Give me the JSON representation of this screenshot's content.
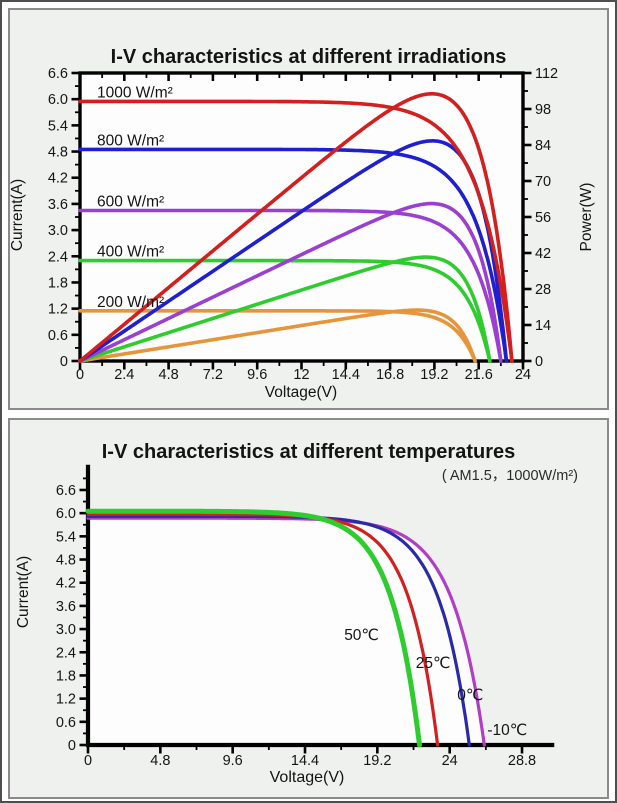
{
  "page": {
    "background": "#ffffff",
    "outer_border": "#4e4e4e",
    "panel_background": "#eff1ee",
    "panel_border": "#8a8a8a",
    "plot_background": "#fdfdfd",
    "axis_color": "#000000",
    "text_color": "#141414"
  },
  "chart_data": [
    {
      "type": "line",
      "title": "I-V characteristics at different irradiations",
      "xlabel": "Voltage(V)",
      "ylabel": "Current(A)",
      "y2label": "Power(W)",
      "xlim": [
        0,
        24
      ],
      "ylim": [
        0,
        6.6
      ],
      "y2lim": [
        0,
        112
      ],
      "grid": false,
      "frame": "box",
      "legend": "inline-labels",
      "x_major": [
        0,
        2.4,
        4.8,
        7.2,
        9.6,
        12,
        14.4,
        16.8,
        19.2,
        21.6,
        24
      ],
      "x_labels": [
        "0",
        "2.4",
        "4.8",
        "7.2",
        "9.6",
        "12",
        "14.4",
        "16.8",
        "19.2",
        "21.6",
        "24"
      ],
      "x_minor": [
        1.2,
        3.6,
        6,
        8.4,
        10.8,
        13.2,
        15.6,
        18,
        20.4,
        22.8
      ],
      "y_major": [
        0,
        0.6,
        1.2,
        1.8,
        2.4,
        3,
        3.6,
        4.2,
        4.8,
        5.4,
        6,
        6.6
      ],
      "y_labels": [
        "0",
        "0.6",
        "1.2",
        "1.8",
        "2.4",
        "3.0",
        "3.6",
        "4.2",
        "4.8",
        "5.4",
        "6.0",
        "6.6"
      ],
      "y_minor": [
        0.3,
        0.9,
        1.5,
        2.1,
        2.7,
        3.3,
        3.9,
        4.5,
        5.1,
        5.7,
        6.3
      ],
      "y2_major": [
        0,
        14,
        28,
        42,
        56,
        70,
        84,
        98,
        112
      ],
      "y2_labels": [
        "0",
        "14",
        "28",
        "42",
        "56",
        "70",
        "84",
        "98",
        "112"
      ],
      "y2_minor": [
        7,
        21,
        35,
        49,
        63,
        77,
        91,
        105
      ],
      "power_curves": true,
      "series_label_color": "#141414",
      "series": [
        {
          "name": "200 W/m²",
          "color": "#e6953b",
          "isc_A": 1.15,
          "voc_V": 21.4,
          "pmax_W": 20,
          "knee": 1.1,
          "width": 3.6,
          "label_x": 0.92,
          "label_y": 1.24
        },
        {
          "name": "400 W/m²",
          "color": "#2ecc2e",
          "isc_A": 2.3,
          "voc_V": 22.2,
          "pmax_W": 41,
          "knee": 1.25,
          "width": 3.6,
          "label_x": 0.92,
          "label_y": 2.39
        },
        {
          "name": "600 W/m²",
          "color": "#9b3fd1",
          "isc_A": 3.45,
          "voc_V": 22.8,
          "pmax_W": 61,
          "knee": 1.4,
          "width": 3.6,
          "label_x": 0.92,
          "label_y": 3.54
        },
        {
          "name": "800 W/m²",
          "color": "#1f1fce",
          "isc_A": 4.85,
          "voc_V": 23.1,
          "pmax_W": 86,
          "knee": 1.55,
          "width": 3.6,
          "label_x": 0.92,
          "label_y": 4.94
        },
        {
          "name": "1000 W/m²",
          "color": "#d41f1f",
          "isc_A": 5.95,
          "voc_V": 23.4,
          "pmax_W": 104,
          "knee": 1.75,
          "width": 3.6,
          "label_x": 0.92,
          "label_y": 6.04
        }
      ]
    },
    {
      "type": "line",
      "title": "I-V characteristics at different temperatures",
      "subtitle": "( AM1.5，1000W/m²)",
      "xlabel": "Voltage(V)",
      "ylabel": "Current(A)",
      "xlim": [
        0,
        30.8
      ],
      "ylim": [
        0,
        7.2
      ],
      "grid": false,
      "frame": "L",
      "legend": "inline-labels",
      "x_major": [
        0,
        4.8,
        9.6,
        14.4,
        19.2,
        24,
        28.8
      ],
      "x_labels": [
        "0",
        "4.8",
        "9.6",
        "14.4",
        "19.2",
        "24",
        "28.8"
      ],
      "x_minor": [
        2.4,
        7.2,
        12,
        16.8,
        21.6,
        26.4
      ],
      "y_major": [
        0,
        0.6,
        1.2,
        1.8,
        2.4,
        3,
        3.6,
        4.2,
        4.8,
        5.4,
        6,
        6.6
      ],
      "y_labels": [
        "0",
        "0.6",
        "1.2",
        "1.8",
        "2.4",
        "3.0",
        "3.6",
        "4.2",
        "4.8",
        "5.4",
        "6.0",
        "6.6"
      ],
      "y_minor": [
        0.3,
        0.9,
        1.5,
        2.1,
        2.7,
        3.3,
        3.9,
        4.5,
        5.1,
        5.7,
        6.3,
        6.9
      ],
      "power_curves": false,
      "series_label_colored": true,
      "fill_under_envelope": "#fdfdfd",
      "series": [
        {
          "name": "-10℃",
          "color": "#b13ec4",
          "isc_A": 5.87,
          "voc_V": 26.3,
          "knee": 2.1,
          "width": 3.2,
          "label_x": 26.5,
          "label_y": 0.26
        },
        {
          "name": "0℃",
          "color": "#2a2aa8",
          "isc_A": 5.92,
          "voc_V": 25.3,
          "knee": 2.0,
          "width": 3.2,
          "label_x": 24.5,
          "label_y": 1.16
        },
        {
          "name": "25℃",
          "color": "#d41f1f",
          "isc_A": 5.97,
          "voc_V": 23.2,
          "knee": 1.9,
          "width": 3.2,
          "label_x": 21.75,
          "label_y": 1.99
        },
        {
          "name": "50℃",
          "color": "#2ecc2e",
          "isc_A": 6.05,
          "voc_V": 22.0,
          "knee": 1.9,
          "width": 5.0,
          "label_x": 17.0,
          "label_y": 2.72
        }
      ]
    }
  ]
}
